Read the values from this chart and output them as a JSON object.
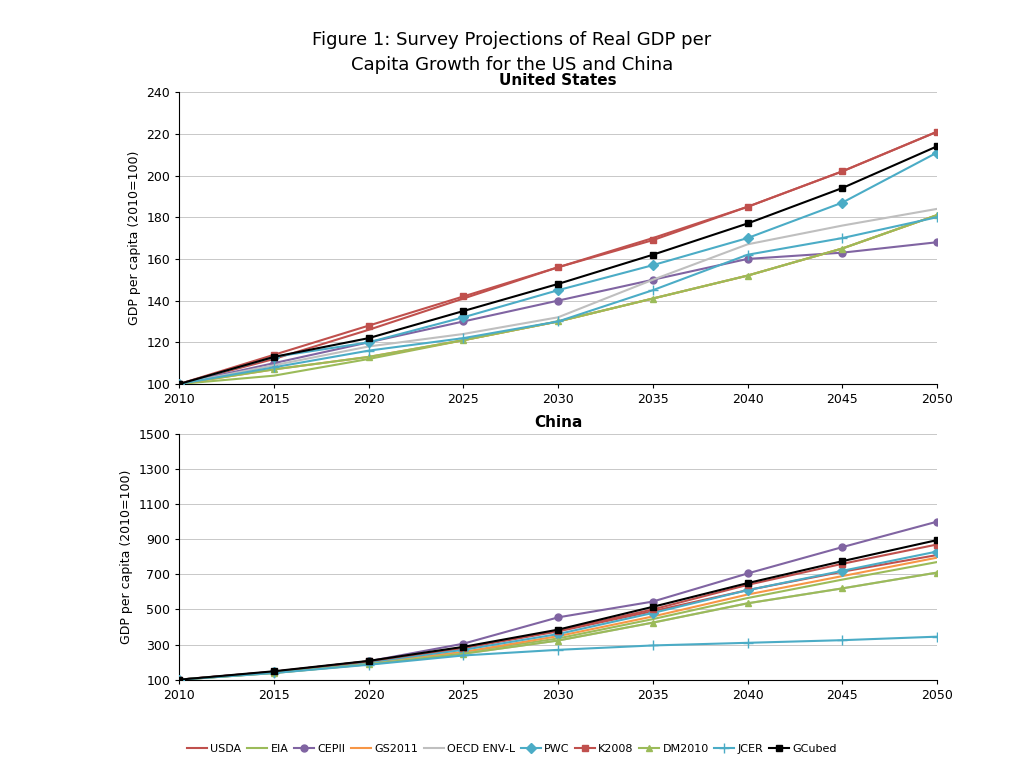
{
  "title": "Figure 1: Survey Projections of Real GDP per\nCapita Growth for the US and China",
  "us_title": "United States",
  "china_title": "China",
  "ylabel": "GDP per capita (2010=100)",
  "years": [
    2010,
    2015,
    2020,
    2025,
    2030,
    2035,
    2040,
    2045,
    2050
  ],
  "series": [
    {
      "name": "USDA",
      "color": "#c0504d",
      "marker": null,
      "us": [
        100,
        112,
        126,
        141,
        156,
        170,
        185,
        202,
        221
      ],
      "china": [
        100,
        145,
        205,
        280,
        375,
        490,
        610,
        715,
        810
      ]
    },
    {
      "name": "EIA",
      "color": "#9bbb59",
      "marker": null,
      "us": [
        100,
        104,
        112,
        121,
        130,
        141,
        152,
        165,
        181
      ],
      "china": [
        100,
        140,
        190,
        255,
        335,
        445,
        565,
        670,
        770
      ]
    },
    {
      "name": "CEPII",
      "color": "#8064a2",
      "marker": "o",
      "us": [
        100,
        110,
        120,
        130,
        140,
        150,
        160,
        163,
        168
      ],
      "china": [
        100,
        145,
        205,
        305,
        455,
        545,
        705,
        855,
        1000
      ]
    },
    {
      "name": "GS2011",
      "color": "#f79646",
      "marker": null,
      "us": [
        100,
        107,
        113,
        121,
        130,
        141,
        152,
        165,
        181
      ],
      "china": [
        100,
        140,
        195,
        258,
        348,
        460,
        585,
        690,
        795
      ]
    },
    {
      "name": "OECD ENV-L",
      "color": "#bfbfbf",
      "marker": null,
      "us": [
        100,
        109,
        118,
        124,
        132,
        150,
        167,
        176,
        184
      ],
      "china": [
        100,
        138,
        188,
        248,
        323,
        425,
        535,
        620,
        710
      ]
    },
    {
      "name": "PWC",
      "color": "#4bacc6",
      "marker": "D",
      "us": [
        100,
        113,
        120,
        132,
        145,
        157,
        170,
        187,
        211
      ],
      "china": [
        100,
        143,
        200,
        270,
        360,
        480,
        610,
        720,
        830
      ]
    },
    {
      "name": "K2008",
      "color": "#c0504d",
      "marker": "s",
      "us": [
        100,
        114,
        128,
        142,
        156,
        169,
        185,
        202,
        221
      ],
      "china": [
        100,
        145,
        205,
        283,
        380,
        500,
        640,
        760,
        870
      ]
    },
    {
      "name": "DM2010",
      "color": "#9bbb59",
      "marker": "^",
      "us": [
        100,
        107,
        113,
        121,
        130,
        141,
        152,
        165,
        181
      ],
      "china": [
        100,
        138,
        188,
        248,
        323,
        425,
        535,
        620,
        710
      ]
    },
    {
      "name": "JCER",
      "color": "#4bacc6",
      "marker": "+",
      "us": [
        100,
        108,
        116,
        122,
        130,
        145,
        162,
        170,
        180
      ],
      "china": [
        100,
        138,
        185,
        238,
        270,
        295,
        310,
        325,
        345
      ]
    },
    {
      "name": "GCubed",
      "color": "#000000",
      "marker": "s",
      "us": [
        100,
        113,
        122,
        135,
        148,
        162,
        177,
        194,
        214
      ],
      "china": [
        100,
        148,
        207,
        287,
        385,
        515,
        650,
        775,
        895
      ]
    }
  ],
  "us_ylim": [
    100,
    240
  ],
  "us_yticks": [
    100,
    120,
    140,
    160,
    180,
    200,
    220,
    240
  ],
  "china_ylim": [
    100,
    1500
  ],
  "china_yticks": [
    100,
    300,
    500,
    700,
    900,
    1100,
    1300,
    1500
  ],
  "xlim": [
    2010,
    2050
  ],
  "xticks": [
    2010,
    2015,
    2020,
    2025,
    2030,
    2035,
    2040,
    2045,
    2050
  ],
  "background_color": "#ffffff",
  "grid_color": "#c8c8c8"
}
